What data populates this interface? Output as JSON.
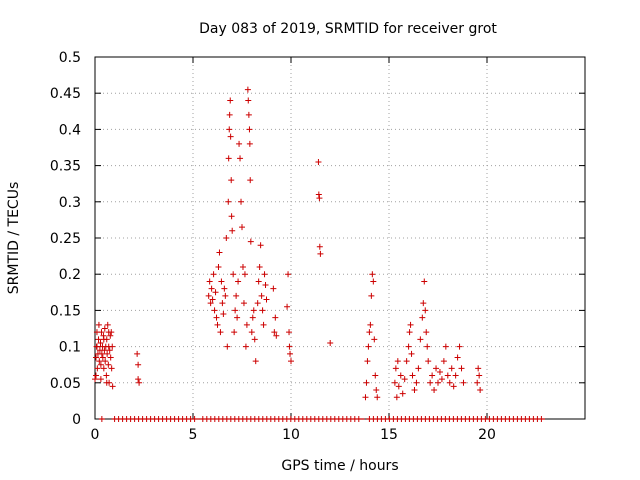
{
  "chart_data": {
    "type": "scatter",
    "title": "Day 083 of 2019, SRMTID for receiver grot",
    "xlabel": "GPS time / hours",
    "ylabel": "SRMTID / TECUs",
    "xlim": [
      0,
      25
    ],
    "ylim": [
      0,
      0.5
    ],
    "x_ticks": [
      0,
      5,
      10,
      15,
      20
    ],
    "y_ticks": [
      0,
      0.05,
      0.1,
      0.15,
      0.2,
      0.25,
      0.3,
      0.35,
      0.4,
      0.45,
      0.5
    ],
    "x_tick_labels": [
      "0",
      "5",
      "10",
      "15",
      "20"
    ],
    "y_tick_labels": [
      "0",
      "0.05",
      "0.1",
      "0.15",
      "0.2",
      "0.25",
      "0.3",
      "0.35",
      "0.4",
      "0.45",
      "0.5"
    ],
    "grid": true,
    "marker": "+",
    "color": "#cc0000",
    "series": [
      {
        "name": "SRMTID",
        "points": [
          [
            0.0,
            0.055
          ],
          [
            0.05,
            0.085
          ],
          [
            0.08,
            0.1
          ],
          [
            0.1,
            0.12
          ],
          [
            0.12,
            0.07
          ],
          [
            0.15,
            0.09
          ],
          [
            0.18,
            0.11
          ],
          [
            0.2,
            0.13
          ],
          [
            0.22,
            0.08
          ],
          [
            0.25,
            0.095
          ],
          [
            0.28,
            0.105
          ],
          [
            0.3,
            0.075
          ],
          [
            0.33,
            0.12
          ],
          [
            0.35,
            0.09
          ],
          [
            0.38,
            0.1
          ],
          [
            0.4,
            0.085
          ],
          [
            0.43,
            0.115
          ],
          [
            0.45,
            0.07
          ],
          [
            0.48,
            0.095
          ],
          [
            0.5,
            0.125
          ],
          [
            0.52,
            0.08
          ],
          [
            0.55,
            0.1
          ],
          [
            0.58,
            0.06
          ],
          [
            0.6,
            0.11
          ],
          [
            0.62,
            0.09
          ],
          [
            0.65,
            0.13
          ],
          [
            0.68,
            0.075
          ],
          [
            0.7,
            0.1
          ],
          [
            0.72,
            0.05
          ],
          [
            0.75,
            0.095
          ],
          [
            0.78,
            0.115
          ],
          [
            0.8,
            0.085
          ],
          [
            0.83,
            0.12
          ],
          [
            0.85,
            0.07
          ],
          [
            0.88,
            0.1
          ],
          [
            0.9,
            0.045
          ],
          [
            0.05,
            0.06
          ],
          [
            0.3,
            0.055
          ],
          [
            0.6,
            0.05
          ],
          [
            0.1,
            0.1
          ],
          [
            0.45,
            0.11
          ],
          [
            0.7,
            0.12
          ],
          [
            2.15,
            0.09
          ],
          [
            2.2,
            0.055
          ],
          [
            2.2,
            0.075
          ],
          [
            2.25,
            0.05
          ],
          [
            5.8,
            0.17
          ],
          [
            5.85,
            0.19
          ],
          [
            5.9,
            0.16
          ],
          [
            5.95,
            0.18
          ],
          [
            6.0,
            0.165
          ],
          [
            6.05,
            0.2
          ],
          [
            6.1,
            0.15
          ],
          [
            6.15,
            0.175
          ],
          [
            6.2,
            0.14
          ],
          [
            6.25,
            0.13
          ],
          [
            6.3,
            0.21
          ],
          [
            6.35,
            0.23
          ],
          [
            6.4,
            0.12
          ],
          [
            6.45,
            0.19
          ],
          [
            6.5,
            0.16
          ],
          [
            6.55,
            0.145
          ],
          [
            6.6,
            0.18
          ],
          [
            6.65,
            0.17
          ],
          [
            6.7,
            0.25
          ],
          [
            6.75,
            0.1
          ],
          [
            6.8,
            0.3
          ],
          [
            6.82,
            0.36
          ],
          [
            6.85,
            0.4
          ],
          [
            6.87,
            0.42
          ],
          [
            6.9,
            0.44
          ],
          [
            6.92,
            0.39
          ],
          [
            6.95,
            0.33
          ],
          [
            6.97,
            0.28
          ],
          [
            7.0,
            0.26
          ],
          [
            7.05,
            0.2
          ],
          [
            7.1,
            0.12
          ],
          [
            7.15,
            0.15
          ],
          [
            7.2,
            0.17
          ],
          [
            7.25,
            0.14
          ],
          [
            7.3,
            0.19
          ],
          [
            7.35,
            0.38
          ],
          [
            7.4,
            0.36
          ],
          [
            7.45,
            0.3
          ],
          [
            7.5,
            0.265
          ],
          [
            7.55,
            0.21
          ],
          [
            7.6,
            0.16
          ],
          [
            7.65,
            0.2
          ],
          [
            7.7,
            0.1
          ],
          [
            7.75,
            0.13
          ],
          [
            7.8,
            0.455
          ],
          [
            7.82,
            0.44
          ],
          [
            7.85,
            0.42
          ],
          [
            7.88,
            0.4
          ],
          [
            7.9,
            0.38
          ],
          [
            7.92,
            0.33
          ],
          [
            7.95,
            0.245
          ],
          [
            8.0,
            0.12
          ],
          [
            8.05,
            0.14
          ],
          [
            8.1,
            0.15
          ],
          [
            8.15,
            0.11
          ],
          [
            8.2,
            0.08
          ],
          [
            8.3,
            0.16
          ],
          [
            8.35,
            0.19
          ],
          [
            8.4,
            0.21
          ],
          [
            8.45,
            0.24
          ],
          [
            8.5,
            0.17
          ],
          [
            8.55,
            0.15
          ],
          [
            8.6,
            0.13
          ],
          [
            8.65,
            0.2
          ],
          [
            8.7,
            0.185
          ],
          [
            8.75,
            0.165
          ],
          [
            9.1,
            0.18
          ],
          [
            9.15,
            0.12
          ],
          [
            9.2,
            0.14
          ],
          [
            9.25,
            0.115
          ],
          [
            9.8,
            0.155
          ],
          [
            9.85,
            0.2
          ],
          [
            9.9,
            0.12
          ],
          [
            9.92,
            0.1
          ],
          [
            9.95,
            0.09
          ],
          [
            10.0,
            0.08
          ],
          [
            11.4,
            0.355
          ],
          [
            11.42,
            0.31
          ],
          [
            11.45,
            0.305
          ],
          [
            11.47,
            0.238
          ],
          [
            11.5,
            0.228
          ],
          [
            12.0,
            0.105
          ],
          [
            13.8,
            0.03
          ],
          [
            13.85,
            0.05
          ],
          [
            13.9,
            0.08
          ],
          [
            13.95,
            0.1
          ],
          [
            14.0,
            0.12
          ],
          [
            14.05,
            0.13
          ],
          [
            14.1,
            0.17
          ],
          [
            14.15,
            0.2
          ],
          [
            14.2,
            0.19
          ],
          [
            14.25,
            0.11
          ],
          [
            14.3,
            0.06
          ],
          [
            14.35,
            0.04
          ],
          [
            14.4,
            0.03
          ],
          [
            15.3,
            0.05
          ],
          [
            15.35,
            0.07
          ],
          [
            15.4,
            0.03
          ],
          [
            15.45,
            0.08
          ],
          [
            15.5,
            0.045
          ],
          [
            15.6,
            0.06
          ],
          [
            15.7,
            0.035
          ],
          [
            15.8,
            0.055
          ],
          [
            15.9,
            0.08
          ],
          [
            16.0,
            0.1
          ],
          [
            16.05,
            0.12
          ],
          [
            16.1,
            0.13
          ],
          [
            16.15,
            0.09
          ],
          [
            16.2,
            0.06
          ],
          [
            16.3,
            0.04
          ],
          [
            16.4,
            0.05
          ],
          [
            16.5,
            0.07
          ],
          [
            16.6,
            0.11
          ],
          [
            16.7,
            0.14
          ],
          [
            16.75,
            0.16
          ],
          [
            16.8,
            0.19
          ],
          [
            16.85,
            0.15
          ],
          [
            16.9,
            0.12
          ],
          [
            16.95,
            0.1
          ],
          [
            17.0,
            0.08
          ],
          [
            17.1,
            0.05
          ],
          [
            17.2,
            0.06
          ],
          [
            17.3,
            0.04
          ],
          [
            17.4,
            0.07
          ],
          [
            17.5,
            0.05
          ],
          [
            17.6,
            0.065
          ],
          [
            17.7,
            0.055
          ],
          [
            17.8,
            0.08
          ],
          [
            17.9,
            0.1
          ],
          [
            18.0,
            0.06
          ],
          [
            18.1,
            0.05
          ],
          [
            18.2,
            0.07
          ],
          [
            18.3,
            0.045
          ],
          [
            18.4,
            0.06
          ],
          [
            18.5,
            0.085
          ],
          [
            18.6,
            0.1
          ],
          [
            18.7,
            0.07
          ],
          [
            18.8,
            0.05
          ],
          [
            19.5,
            0.05
          ],
          [
            19.55,
            0.07
          ],
          [
            19.6,
            0.06
          ],
          [
            19.65,
            0.04
          ]
        ]
      }
    ],
    "zero_segments": [
      [
        0.35,
        0.35
      ],
      [
        1.0,
        5.2
      ],
      [
        5.5,
        13.6
      ],
      [
        14.0,
        22.8
      ]
    ]
  }
}
